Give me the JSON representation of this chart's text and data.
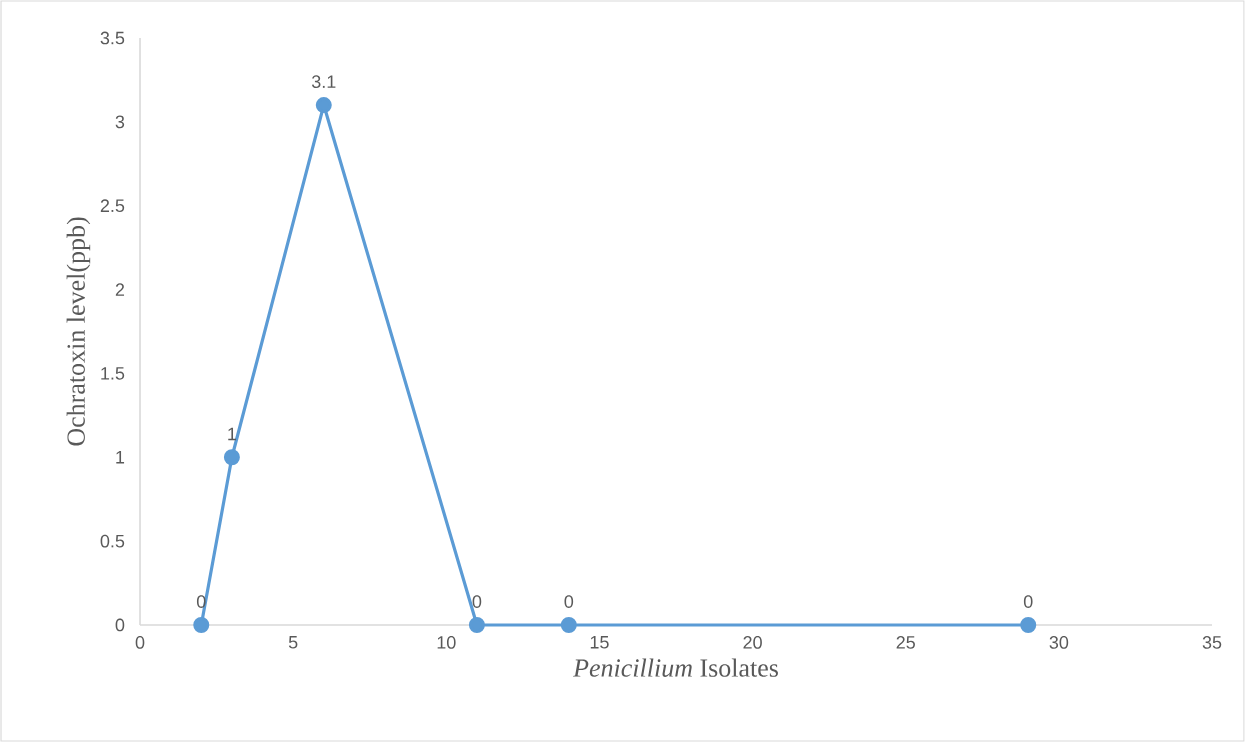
{
  "chart_data": {
    "type": "line",
    "xlabel": "*Penicillium* Isolates",
    "ylabel": "Ochratoxin level(ppb)",
    "x": [
      2,
      3,
      6,
      11,
      14,
      29
    ],
    "values": [
      0,
      1,
      3.1,
      0,
      0,
      0
    ],
    "color": "#5b9bd5",
    "marker": "circle",
    "line_style": "solid",
    "data_labels": true,
    "xlim": [
      0,
      35
    ],
    "ylim": [
      0,
      3.5
    ],
    "xticks": [
      0,
      5,
      10,
      15,
      20,
      25,
      30,
      35
    ],
    "yticks": [
      0,
      0.5,
      1,
      1.5,
      2,
      2.5,
      3,
      3.5
    ]
  }
}
